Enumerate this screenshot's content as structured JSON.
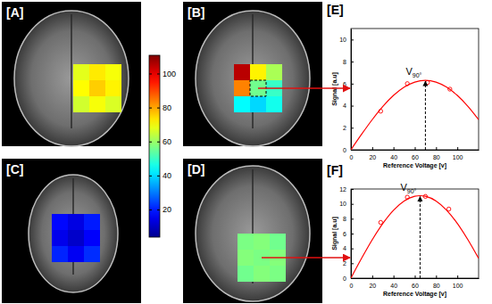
{
  "panels": [
    {
      "label": "[A]",
      "cells": [
        [
          68,
          73,
          70
        ],
        [
          71,
          76,
          72
        ],
        [
          66,
          70,
          67
        ]
      ]
    },
    {
      "label": "[B]",
      "cells": [
        [
          105,
          72,
          62
        ],
        [
          84,
          56,
          50
        ],
        [
          44,
          40,
          46
        ]
      ]
    },
    {
      "label": "[C]",
      "cells": [
        [
          18,
          14,
          20
        ],
        [
          15,
          11,
          17
        ],
        [
          21,
          16,
          22
        ]
      ]
    },
    {
      "label": "[D]",
      "cells": [
        [
          57,
          58,
          56
        ],
        [
          58,
          57,
          58
        ],
        [
          56,
          58,
          57
        ]
      ]
    }
  ],
  "colorbar": {
    "range": [
      4,
      111
    ],
    "ticks": [
      20,
      40,
      60,
      80,
      100
    ]
  },
  "chart_data": [
    {
      "type": "line",
      "title": "[E]",
      "x_label": "Reference Voltage [v]",
      "y_label": "Signal [a.u]",
      "xlim": [
        0,
        120
      ],
      "ylim": [
        0,
        11
      ],
      "xticks": [
        0,
        20,
        40,
        60,
        80,
        100
      ],
      "yticks": [
        0,
        2,
        4,
        6,
        8,
        10
      ],
      "series": [
        {
          "type": "line",
          "color": "#ff0000",
          "x": [
            0,
            10,
            20,
            30,
            40,
            50,
            60,
            70,
            80,
            90,
            100,
            110,
            120
          ],
          "values": [
            0,
            1.4,
            2.73,
            3.93,
            4.93,
            5.68,
            6.14,
            6.3,
            6.14,
            5.68,
            4.93,
            3.93,
            2.73
          ]
        },
        {
          "type": "scatter",
          "color": "#ff0000",
          "marker": "circle",
          "x": [
            28,
            53,
            72,
            93
          ],
          "values": [
            3.5,
            6.0,
            6.1,
            5.5
          ]
        }
      ],
      "annotations": [
        {
          "text": "V",
          "subscript": "90°",
          "x": 70,
          "y": 6.3
        }
      ]
    },
    {
      "type": "line",
      "title": "[F]",
      "x_label": "Reference Voltage [v]",
      "y_label": "Signal [a.u]",
      "xlim": [
        0,
        120
      ],
      "ylim": [
        0,
        12
      ],
      "xticks": [
        0,
        20,
        40,
        60,
        80,
        100
      ],
      "yticks": [
        0,
        2,
        4,
        6,
        8,
        10,
        12
      ],
      "series": [
        {
          "type": "line",
          "color": "#ff0000",
          "x": [
            0,
            10,
            20,
            30,
            40,
            50,
            60,
            65,
            70,
            80,
            90,
            100,
            110,
            120
          ],
          "values": [
            0,
            2.66,
            5.16,
            7.36,
            9.14,
            10.38,
            11.02,
            11.1,
            11.02,
            10.38,
            9.14,
            7.36,
            5.16,
            2.66
          ]
        },
        {
          "type": "scatter",
          "color": "#ff0000",
          "marker": "circle",
          "x": [
            28,
            53,
            70,
            92
          ],
          "values": [
            7.5,
            10.9,
            11.0,
            9.3
          ]
        }
      ],
      "annotations": [
        {
          "text": "V",
          "subscript": "90°",
          "x": 65,
          "y": 11.1
        }
      ]
    }
  ]
}
